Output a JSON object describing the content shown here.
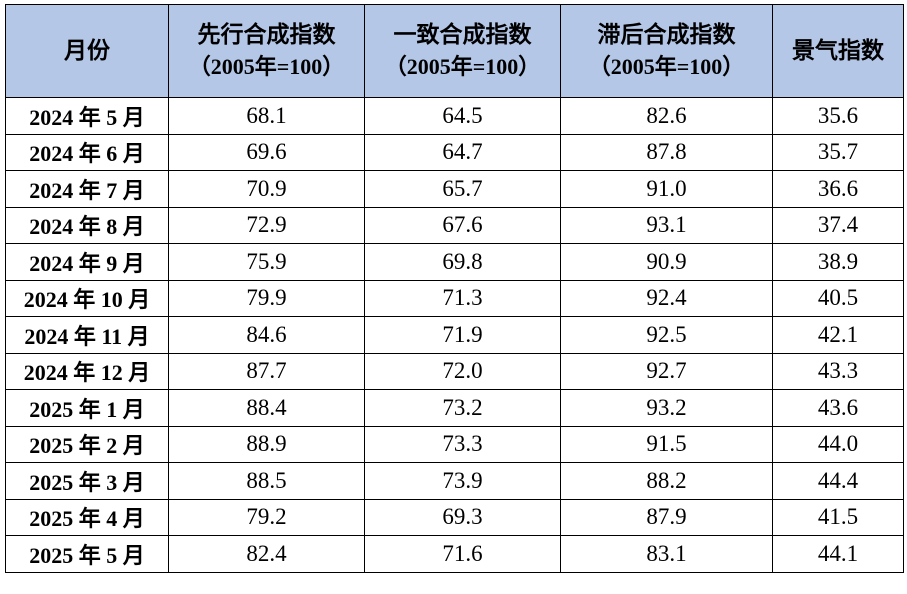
{
  "table": {
    "headers": [
      {
        "label": "月份",
        "sub": ""
      },
      {
        "label": "先行合成指数",
        "sub": "（2005年=100）"
      },
      {
        "label": "一致合成指数",
        "sub": "（2005年=100）"
      },
      {
        "label": "滞后合成指数",
        "sub": "（2005年=100）"
      },
      {
        "label": "景气指数",
        "sub": ""
      }
    ],
    "rows": [
      [
        "2024 年 5 月",
        "68.1",
        "64.5",
        "82.6",
        "35.6"
      ],
      [
        "2024 年 6 月",
        "69.6",
        "64.7",
        "87.8",
        "35.7"
      ],
      [
        "2024 年 7 月",
        "70.9",
        "65.7",
        "91.0",
        "36.6"
      ],
      [
        "2024 年 8 月",
        "72.9",
        "67.6",
        "93.1",
        "37.4"
      ],
      [
        "2024 年 9 月",
        "75.9",
        "69.8",
        "90.9",
        "38.9"
      ],
      [
        "2024 年 10 月",
        "79.9",
        "71.3",
        "92.4",
        "40.5"
      ],
      [
        "2024 年 11 月",
        "84.6",
        "71.9",
        "92.5",
        "42.1"
      ],
      [
        "2024 年 12 月",
        "87.7",
        "72.0",
        "92.7",
        "43.3"
      ],
      [
        "2025 年 1 月",
        "88.4",
        "73.2",
        "93.2",
        "43.6"
      ],
      [
        "2025 年 2 月",
        "88.9",
        "73.3",
        "91.5",
        "44.0"
      ],
      [
        "2025 年 3 月",
        "88.5",
        "73.9",
        "88.2",
        "44.4"
      ],
      [
        "2025 年 4 月",
        "79.2",
        "69.3",
        "87.9",
        "41.5"
      ],
      [
        "2025 年 5 月",
        "82.4",
        "71.6",
        "83.1",
        "44.1"
      ]
    ]
  },
  "colors": {
    "header_background": "#b4c7e7",
    "border": "#000000"
  }
}
